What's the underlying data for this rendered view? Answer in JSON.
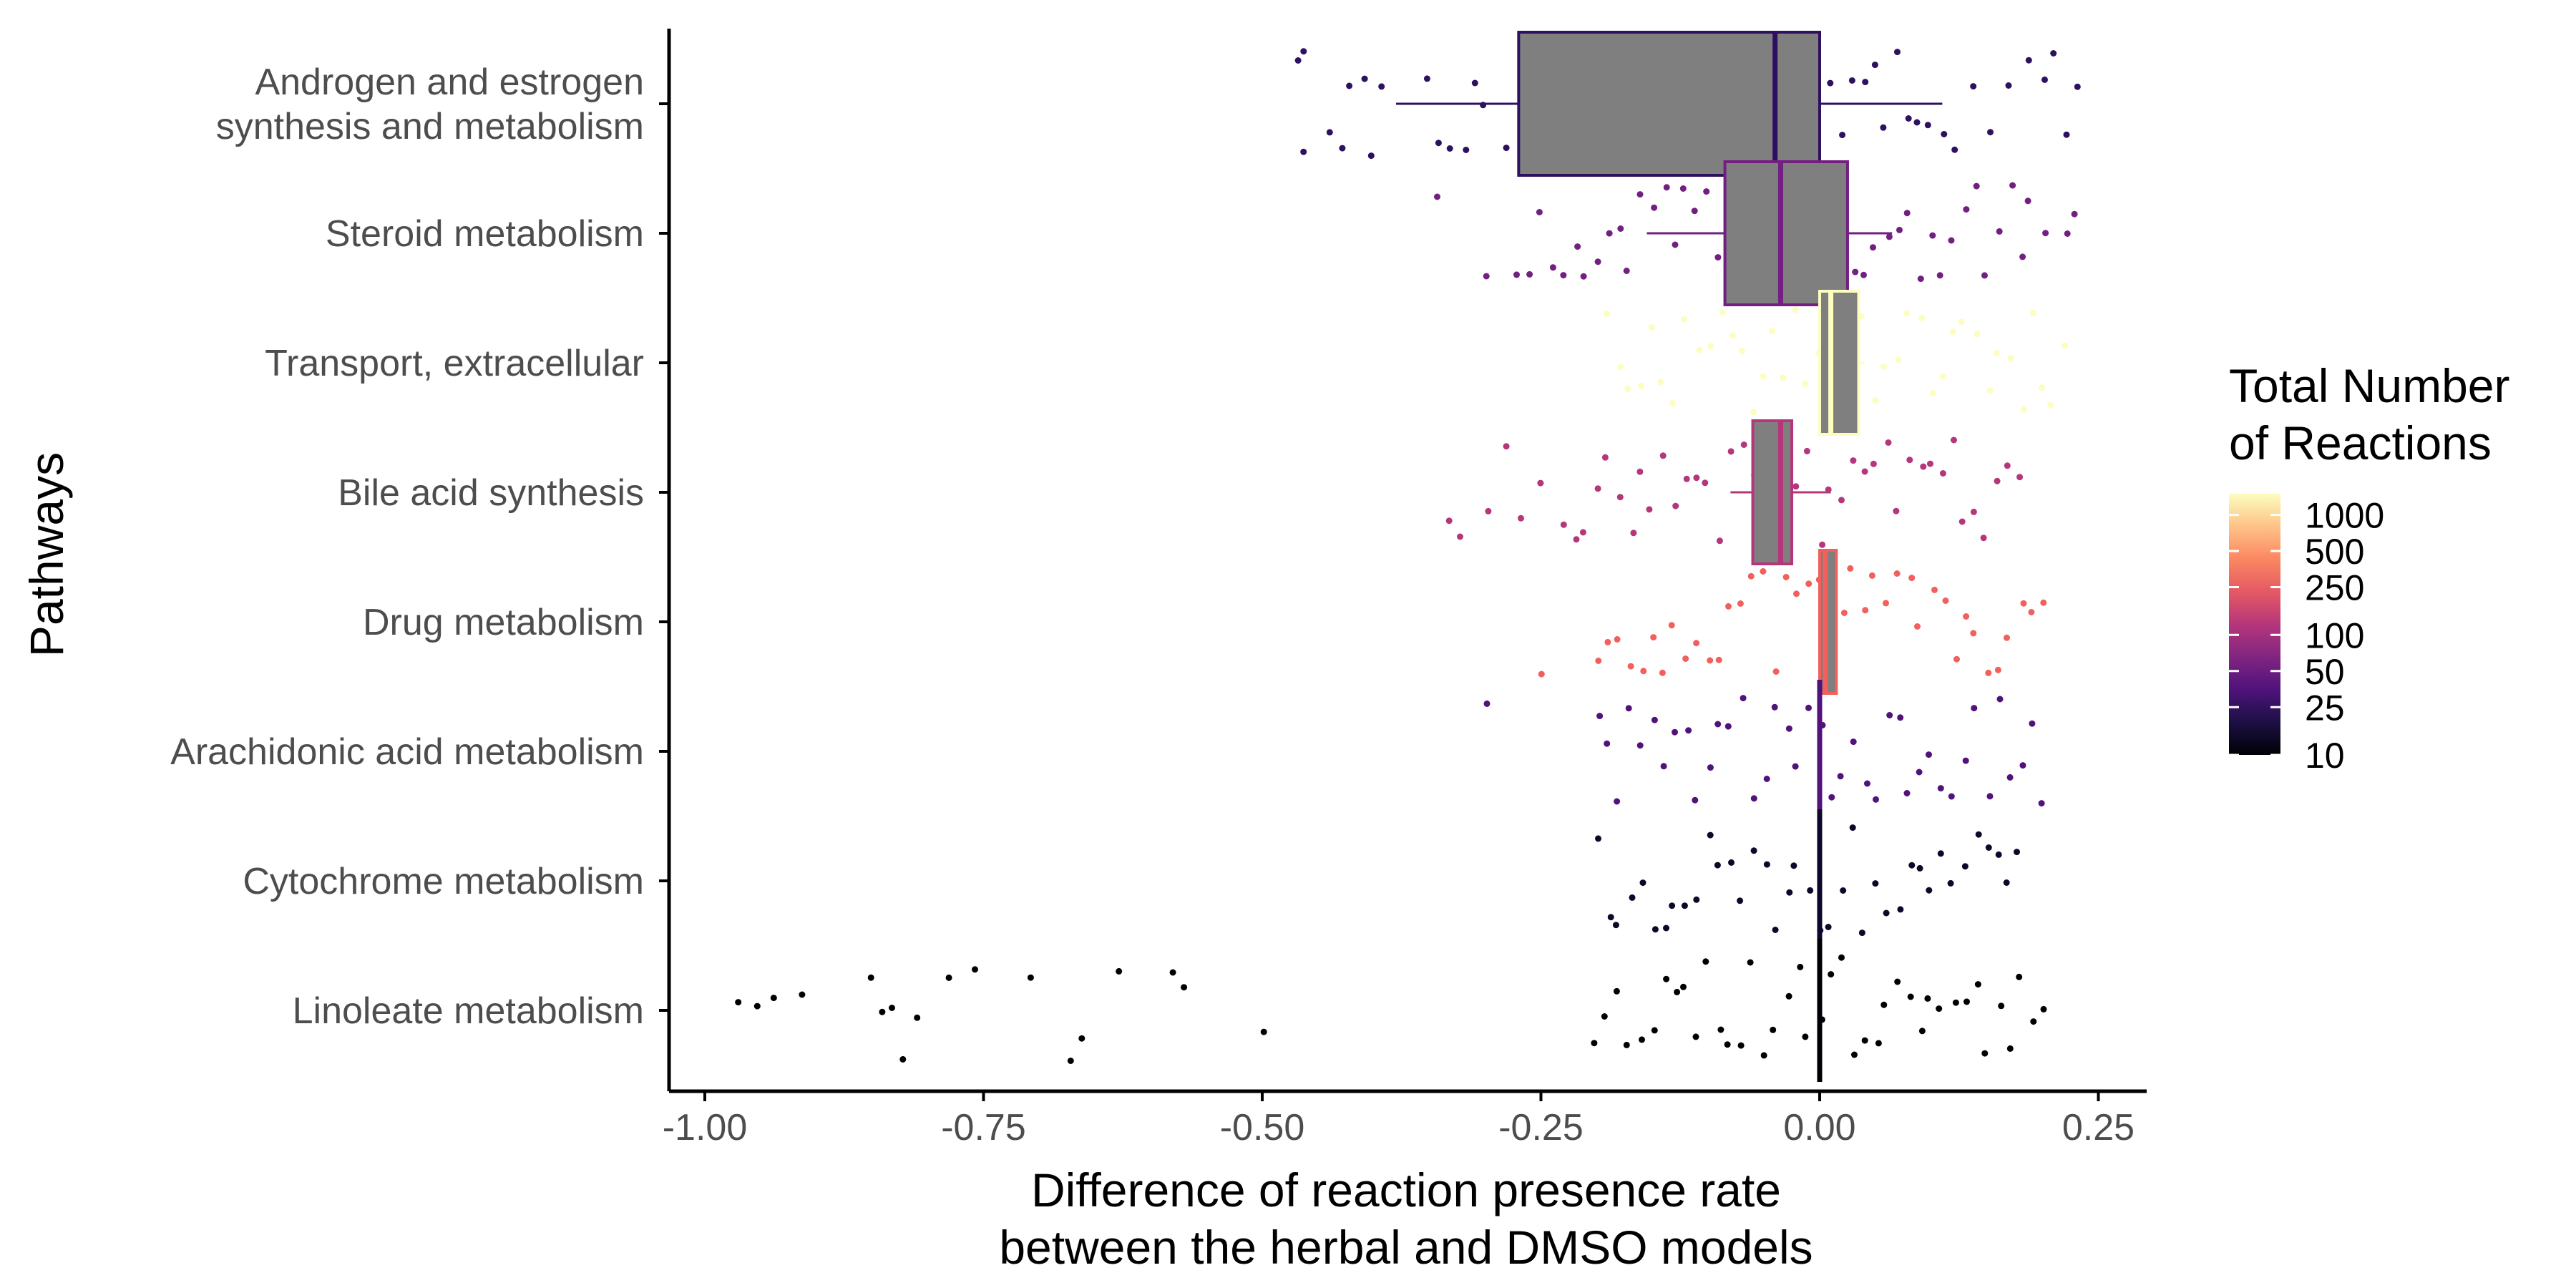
{
  "chart_data": {
    "type": "box",
    "xlabel_line1": "Difference of reaction presence rate",
    "xlabel_line2": "between the herbal and DMSO models",
    "ylabel": "Pathways",
    "xlim": [
      -1.05,
      0.29
    ],
    "xticks": [
      -1.0,
      -0.75,
      -0.5,
      -0.25,
      0.0,
      0.25
    ],
    "xtick_labels": [
      "-1.00",
      "-0.75",
      "-0.50",
      "-0.25",
      "0.00",
      "0.25"
    ],
    "grid": false,
    "legend": {
      "title_line1": "Total Number",
      "title_line2": "of Reactions",
      "placement": "right",
      "scale": "log",
      "range": [
        10,
        1500
      ],
      "ticks": [
        10,
        25,
        50,
        100,
        250,
        500,
        1000
      ],
      "tick_labels": [
        "10",
        "25",
        "50",
        "100",
        "250",
        "500",
        "1000"
      ]
    },
    "categories": [
      "Androgen and estrogen synthesis and metabolism",
      "Steroid metabolism",
      "Transport, extracellular",
      "Bile acid synthesis",
      "Drug metabolism",
      "Arachidonic acid metabolism",
      "Cytochrome metabolism",
      "Linoleate metabolism"
    ],
    "category_labels": [
      [
        "Androgen and estrogen",
        "synthesis and metabolism"
      ],
      [
        "Steroid metabolism"
      ],
      [
        "Transport, extracellular"
      ],
      [
        "Bile acid synthesis"
      ],
      [
        "Drug metabolism"
      ],
      [
        "Arachidonic acid metabolism"
      ],
      [
        "Cytochrome metabolism"
      ],
      [
        "Linoleate metabolism"
      ]
    ],
    "series": [
      {
        "name": "Androgen and estrogen synthesis and metabolism",
        "total_reactions": 40,
        "color": "#2d1160",
        "box": {
          "min": -0.38,
          "q1": -0.27,
          "median": -0.04,
          "q3": 0.0,
          "max": 0.11
        },
        "points": [
          -0.47,
          -0.46,
          -0.46,
          -0.44,
          -0.43,
          -0.42,
          -0.41,
          -0.4,
          -0.39,
          -0.35,
          -0.34,
          -0.33,
          -0.32,
          -0.31,
          -0.3,
          -0.28,
          -0.27,
          -0.26,
          -0.25,
          -0.24,
          -0.23,
          -0.22,
          -0.21,
          -0.2,
          -0.19,
          -0.18,
          -0.17,
          -0.16,
          -0.15,
          -0.14,
          -0.13,
          -0.12,
          -0.11,
          -0.1,
          -0.09,
          -0.08,
          -0.07,
          -0.06,
          -0.05,
          -0.04,
          -0.03,
          -0.02,
          -0.01,
          0.0,
          0.01,
          0.02,
          0.03,
          0.04,
          0.05,
          0.06,
          0.07,
          0.08,
          0.09,
          0.1,
          0.11,
          0.12,
          0.14,
          0.15,
          0.17,
          0.19,
          0.2,
          0.21,
          0.22,
          0.23
        ]
      },
      {
        "name": "Steroid metabolism",
        "total_reactions": 85,
        "color": "#721f81",
        "box": {
          "min": -0.155,
          "q1": -0.085,
          "median": -0.035,
          "q3": 0.025,
          "max": 0.065
        },
        "points": [
          -0.34,
          -0.3,
          -0.27,
          -0.26,
          -0.25,
          -0.24,
          -0.23,
          -0.22,
          -0.21,
          -0.2,
          -0.19,
          -0.18,
          -0.17,
          -0.16,
          -0.15,
          -0.14,
          -0.13,
          -0.12,
          -0.11,
          -0.1,
          -0.09,
          -0.08,
          -0.07,
          -0.06,
          -0.05,
          -0.04,
          -0.03,
          -0.02,
          -0.01,
          0.0,
          0.01,
          0.02,
          0.03,
          0.04,
          0.05,
          0.06,
          0.07,
          0.08,
          0.09,
          0.1,
          0.11,
          0.12,
          0.13,
          0.14,
          0.15,
          0.16,
          0.17,
          0.18,
          0.19,
          0.2,
          0.22,
          0.23
        ]
      },
      {
        "name": "Transport, extracellular",
        "total_reactions": 1500,
        "color": "#fcfdbf",
        "box": {
          "min": 0.0,
          "q1": 0.0,
          "median": 0.01,
          "q3": 0.035,
          "max": 0.04
        },
        "points": [
          -0.19,
          -0.18,
          -0.17,
          -0.16,
          -0.15,
          -0.14,
          -0.13,
          -0.12,
          -0.11,
          -0.1,
          -0.09,
          -0.08,
          -0.07,
          -0.06,
          -0.05,
          -0.04,
          -0.03,
          -0.02,
          -0.01,
          0.0,
          0.01,
          0.015,
          0.02,
          0.025,
          0.03,
          0.04,
          0.05,
          0.06,
          0.07,
          0.08,
          0.09,
          0.1,
          0.11,
          0.12,
          0.13,
          0.14,
          0.15,
          0.16,
          0.17,
          0.18,
          0.19,
          0.2,
          0.21,
          0.22
        ]
      },
      {
        "name": "Bile acid synthesis",
        "total_reactions": 180,
        "color": "#b5367a",
        "box": {
          "min": -0.08,
          "q1": -0.06,
          "median": -0.035,
          "q3": -0.025,
          "max": 0.01
        },
        "points": [
          -0.33,
          -0.32,
          -0.3,
          -0.28,
          -0.27,
          -0.25,
          -0.23,
          -0.22,
          -0.21,
          -0.2,
          -0.19,
          -0.18,
          -0.17,
          -0.16,
          -0.15,
          -0.14,
          -0.13,
          -0.12,
          -0.11,
          -0.1,
          -0.09,
          -0.08,
          -0.07,
          -0.06,
          -0.05,
          -0.04,
          -0.03,
          -0.02,
          -0.01,
          0.0,
          0.01,
          0.02,
          0.03,
          0.04,
          0.05,
          0.06,
          0.07,
          0.08,
          0.09,
          0.1,
          0.11,
          0.12,
          0.13,
          0.14,
          0.15,
          0.16,
          0.17,
          0.18
        ]
      },
      {
        "name": "Drug metabolism",
        "total_reactions": 450,
        "color": "#f1605d",
        "box": {
          "min": 0.0,
          "q1": 0.0,
          "median": 0.005,
          "q3": 0.015,
          "max": 0.015
        },
        "points": [
          -0.25,
          -0.2,
          -0.19,
          -0.18,
          -0.17,
          -0.16,
          -0.15,
          -0.14,
          -0.13,
          -0.12,
          -0.11,
          -0.1,
          -0.09,
          -0.08,
          -0.07,
          -0.06,
          -0.05,
          -0.04,
          -0.03,
          -0.02,
          -0.01,
          0.0,
          0.01,
          0.02,
          0.03,
          0.04,
          0.05,
          0.06,
          0.07,
          0.08,
          0.09,
          0.1,
          0.11,
          0.12,
          0.13,
          0.14,
          0.15,
          0.16,
          0.17,
          0.18,
          0.19,
          0.2
        ]
      },
      {
        "name": "Arachidonic acid metabolism",
        "total_reactions": 60,
        "color": "#51127c",
        "box": {
          "min": 0.0,
          "q1": 0.0,
          "median": 0.0,
          "q3": 0.0,
          "max": 0.0
        },
        "points": [
          -0.3,
          -0.2,
          -0.19,
          -0.18,
          -0.17,
          -0.16,
          -0.15,
          -0.14,
          -0.13,
          -0.12,
          -0.11,
          -0.1,
          -0.09,
          -0.08,
          -0.07,
          -0.06,
          -0.05,
          -0.04,
          -0.03,
          -0.02,
          -0.01,
          0.0,
          0.01,
          0.02,
          0.03,
          0.04,
          0.05,
          0.06,
          0.07,
          0.08,
          0.09,
          0.1,
          0.11,
          0.12,
          0.13,
          0.14,
          0.15,
          0.16,
          0.17,
          0.18,
          0.19,
          0.2
        ]
      },
      {
        "name": "Cytochrome metabolism",
        "total_reactions": 15,
        "color": "#0d0829",
        "box": {
          "min": 0.0,
          "q1": 0.0,
          "median": 0.0,
          "q3": 0.0,
          "max": 0.0
        },
        "points": [
          -0.2,
          -0.19,
          -0.18,
          -0.17,
          -0.16,
          -0.15,
          -0.14,
          -0.13,
          -0.12,
          -0.11,
          -0.1,
          -0.09,
          -0.08,
          -0.07,
          -0.06,
          -0.05,
          -0.04,
          -0.03,
          -0.02,
          -0.01,
          0.0,
          0.01,
          0.02,
          0.03,
          0.04,
          0.05,
          0.06,
          0.07,
          0.08,
          0.09,
          0.1,
          0.11,
          0.12,
          0.13,
          0.14,
          0.15,
          0.16,
          0.17,
          0.18
        ]
      },
      {
        "name": "Linoleate metabolism",
        "total_reactions": 10,
        "color": "#000004",
        "box": {
          "min": 0.0,
          "q1": 0.0,
          "median": 0.0,
          "q3": 0.0,
          "max": 0.0
        },
        "points": [
          -0.97,
          -0.95,
          -0.94,
          -0.91,
          -0.85,
          -0.84,
          -0.83,
          -0.82,
          -0.81,
          -0.78,
          -0.76,
          -0.71,
          -0.67,
          -0.66,
          -0.63,
          -0.58,
          -0.57,
          -0.5,
          -0.2,
          -0.19,
          -0.18,
          -0.17,
          -0.16,
          -0.15,
          -0.14,
          -0.13,
          -0.12,
          -0.11,
          -0.1,
          -0.09,
          -0.08,
          -0.07,
          -0.06,
          -0.05,
          -0.04,
          -0.03,
          -0.02,
          -0.01,
          0.0,
          0.01,
          0.02,
          0.03,
          0.04,
          0.05,
          0.06,
          0.07,
          0.08,
          0.09,
          0.1,
          0.11,
          0.12,
          0.13,
          0.14,
          0.15,
          0.16,
          0.17,
          0.18,
          0.19,
          0.2
        ]
      }
    ]
  },
  "palette": {
    "axis": "#000000",
    "box_fill": "#7f7f7f",
    "legend_stops": [
      "#000004",
      "#1c1044",
      "#4f127b",
      "#812581",
      "#b5367a",
      "#e55964",
      "#fb8761",
      "#fec287",
      "#fcfdbf"
    ]
  }
}
